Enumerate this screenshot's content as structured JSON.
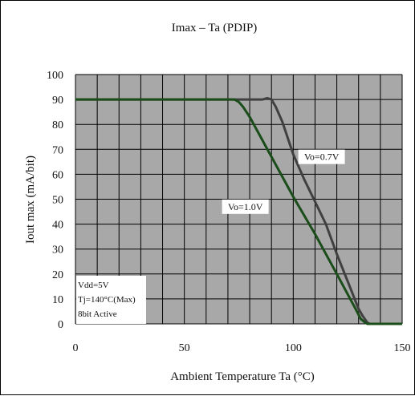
{
  "chart_data": {
    "type": "line",
    "title": "Imax – Ta (PDIP)",
    "xlabel": "Ambient Temperature Ta  (°C)",
    "ylabel": "Iout max (mA/bit)",
    "xlim": [
      0,
      150
    ],
    "ylim": [
      0,
      100
    ],
    "x_ticks": [
      "0",
      "50",
      "100",
      "150"
    ],
    "y_ticks": [
      "0",
      "10",
      "20",
      "30",
      "40",
      "50",
      "60",
      "70",
      "80",
      "90",
      "100"
    ],
    "grid": true,
    "plot_background": "#a8a8a8",
    "grid_color": "#000000",
    "series": [
      {
        "name": "Vo=0.7V",
        "color": "#404040",
        "x": [
          0,
          86,
          88,
          90,
          92,
          95,
          100,
          105,
          110,
          115,
          120,
          125,
          130,
          132,
          134,
          135,
          136,
          150
        ],
        "y": [
          90,
          90,
          90.5,
          90,
          87,
          81,
          68,
          58,
          49,
          40,
          28,
          17,
          6,
          3,
          0.5,
          0,
          0,
          0
        ]
      },
      {
        "name": "Vo=1.0V",
        "color": "#1a4d1a",
        "x": [
          0,
          73,
          75,
          77,
          80,
          90,
          100,
          110,
          120,
          128,
          131,
          133,
          134,
          135,
          150
        ],
        "y": [
          90,
          90,
          89,
          87,
          83,
          67,
          51,
          36,
          20,
          7,
          2,
          0.5,
          0,
          0,
          0
        ]
      }
    ],
    "annotations": [
      "Vdd=5V",
      "Tj=140°C(Max)",
      "8bit Active"
    ]
  }
}
